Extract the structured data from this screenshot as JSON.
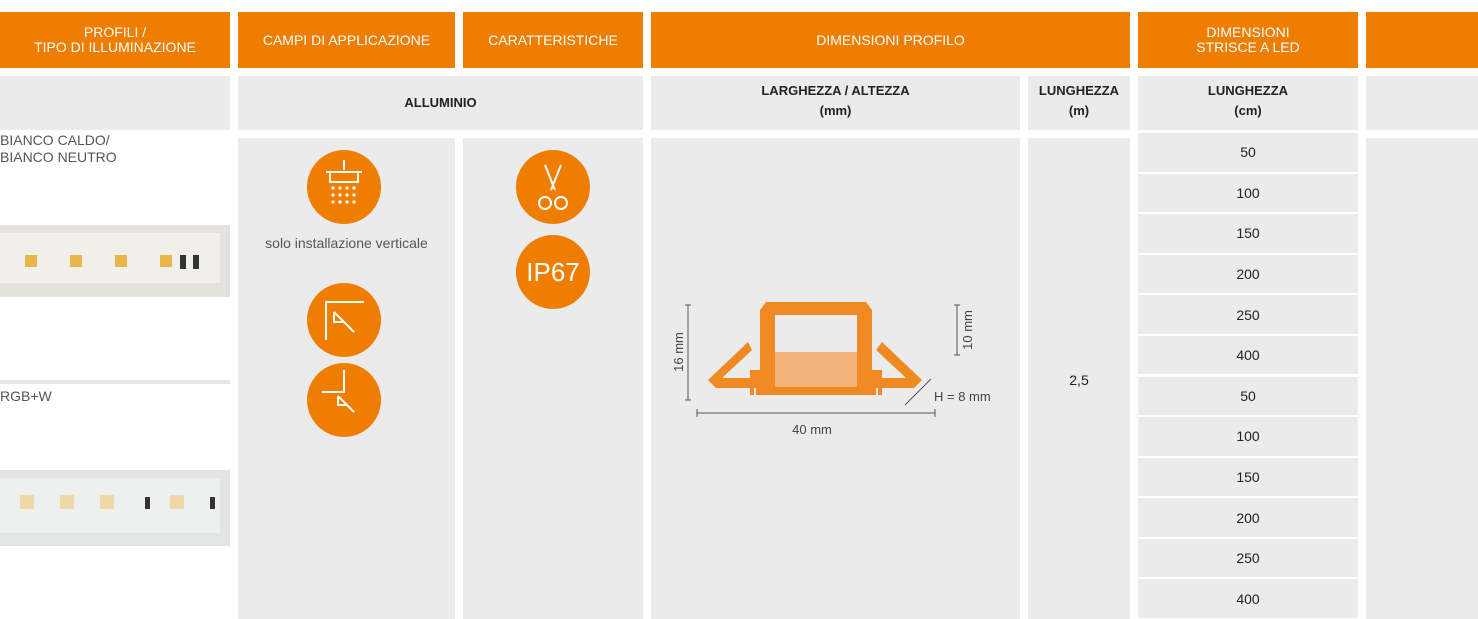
{
  "header": {
    "cells": [
      "PROFILI /\nTIPO DI ILLUMINAZIONE",
      "CAMPI DI APPLICAZIONE",
      "CARATTERISTICHE",
      "DIMENSIONI PROFILO",
      "DIMENSIONI\nSTRISCE A LED"
    ]
  },
  "subheader": {
    "material": "ALLUMINIO",
    "width_height": "LARGHEZZA / ALTEZZA",
    "width_height_unit": "(mm)",
    "length_profile": "LUNGHEZZA",
    "length_profile_unit": "(m)",
    "length_led": "LUNGHEZZA",
    "length_led_unit": "(cm)"
  },
  "profiles": [
    {
      "label": "BIANCO CALDO/\nBIANCO NEUTRO"
    },
    {
      "label": "RGB+W"
    }
  ],
  "application_note": "solo installazione verticale",
  "features": {
    "badge": "IP67"
  },
  "drawing": {
    "height": "16 mm",
    "inner_height": "10 mm",
    "width": "40 mm",
    "h_label": "H = 8 mm"
  },
  "profile_length": "2,5",
  "led_lengths": [
    "50",
    "100",
    "150",
    "200",
    "250",
    "400",
    "50",
    "100",
    "150",
    "200",
    "250",
    "400"
  ]
}
